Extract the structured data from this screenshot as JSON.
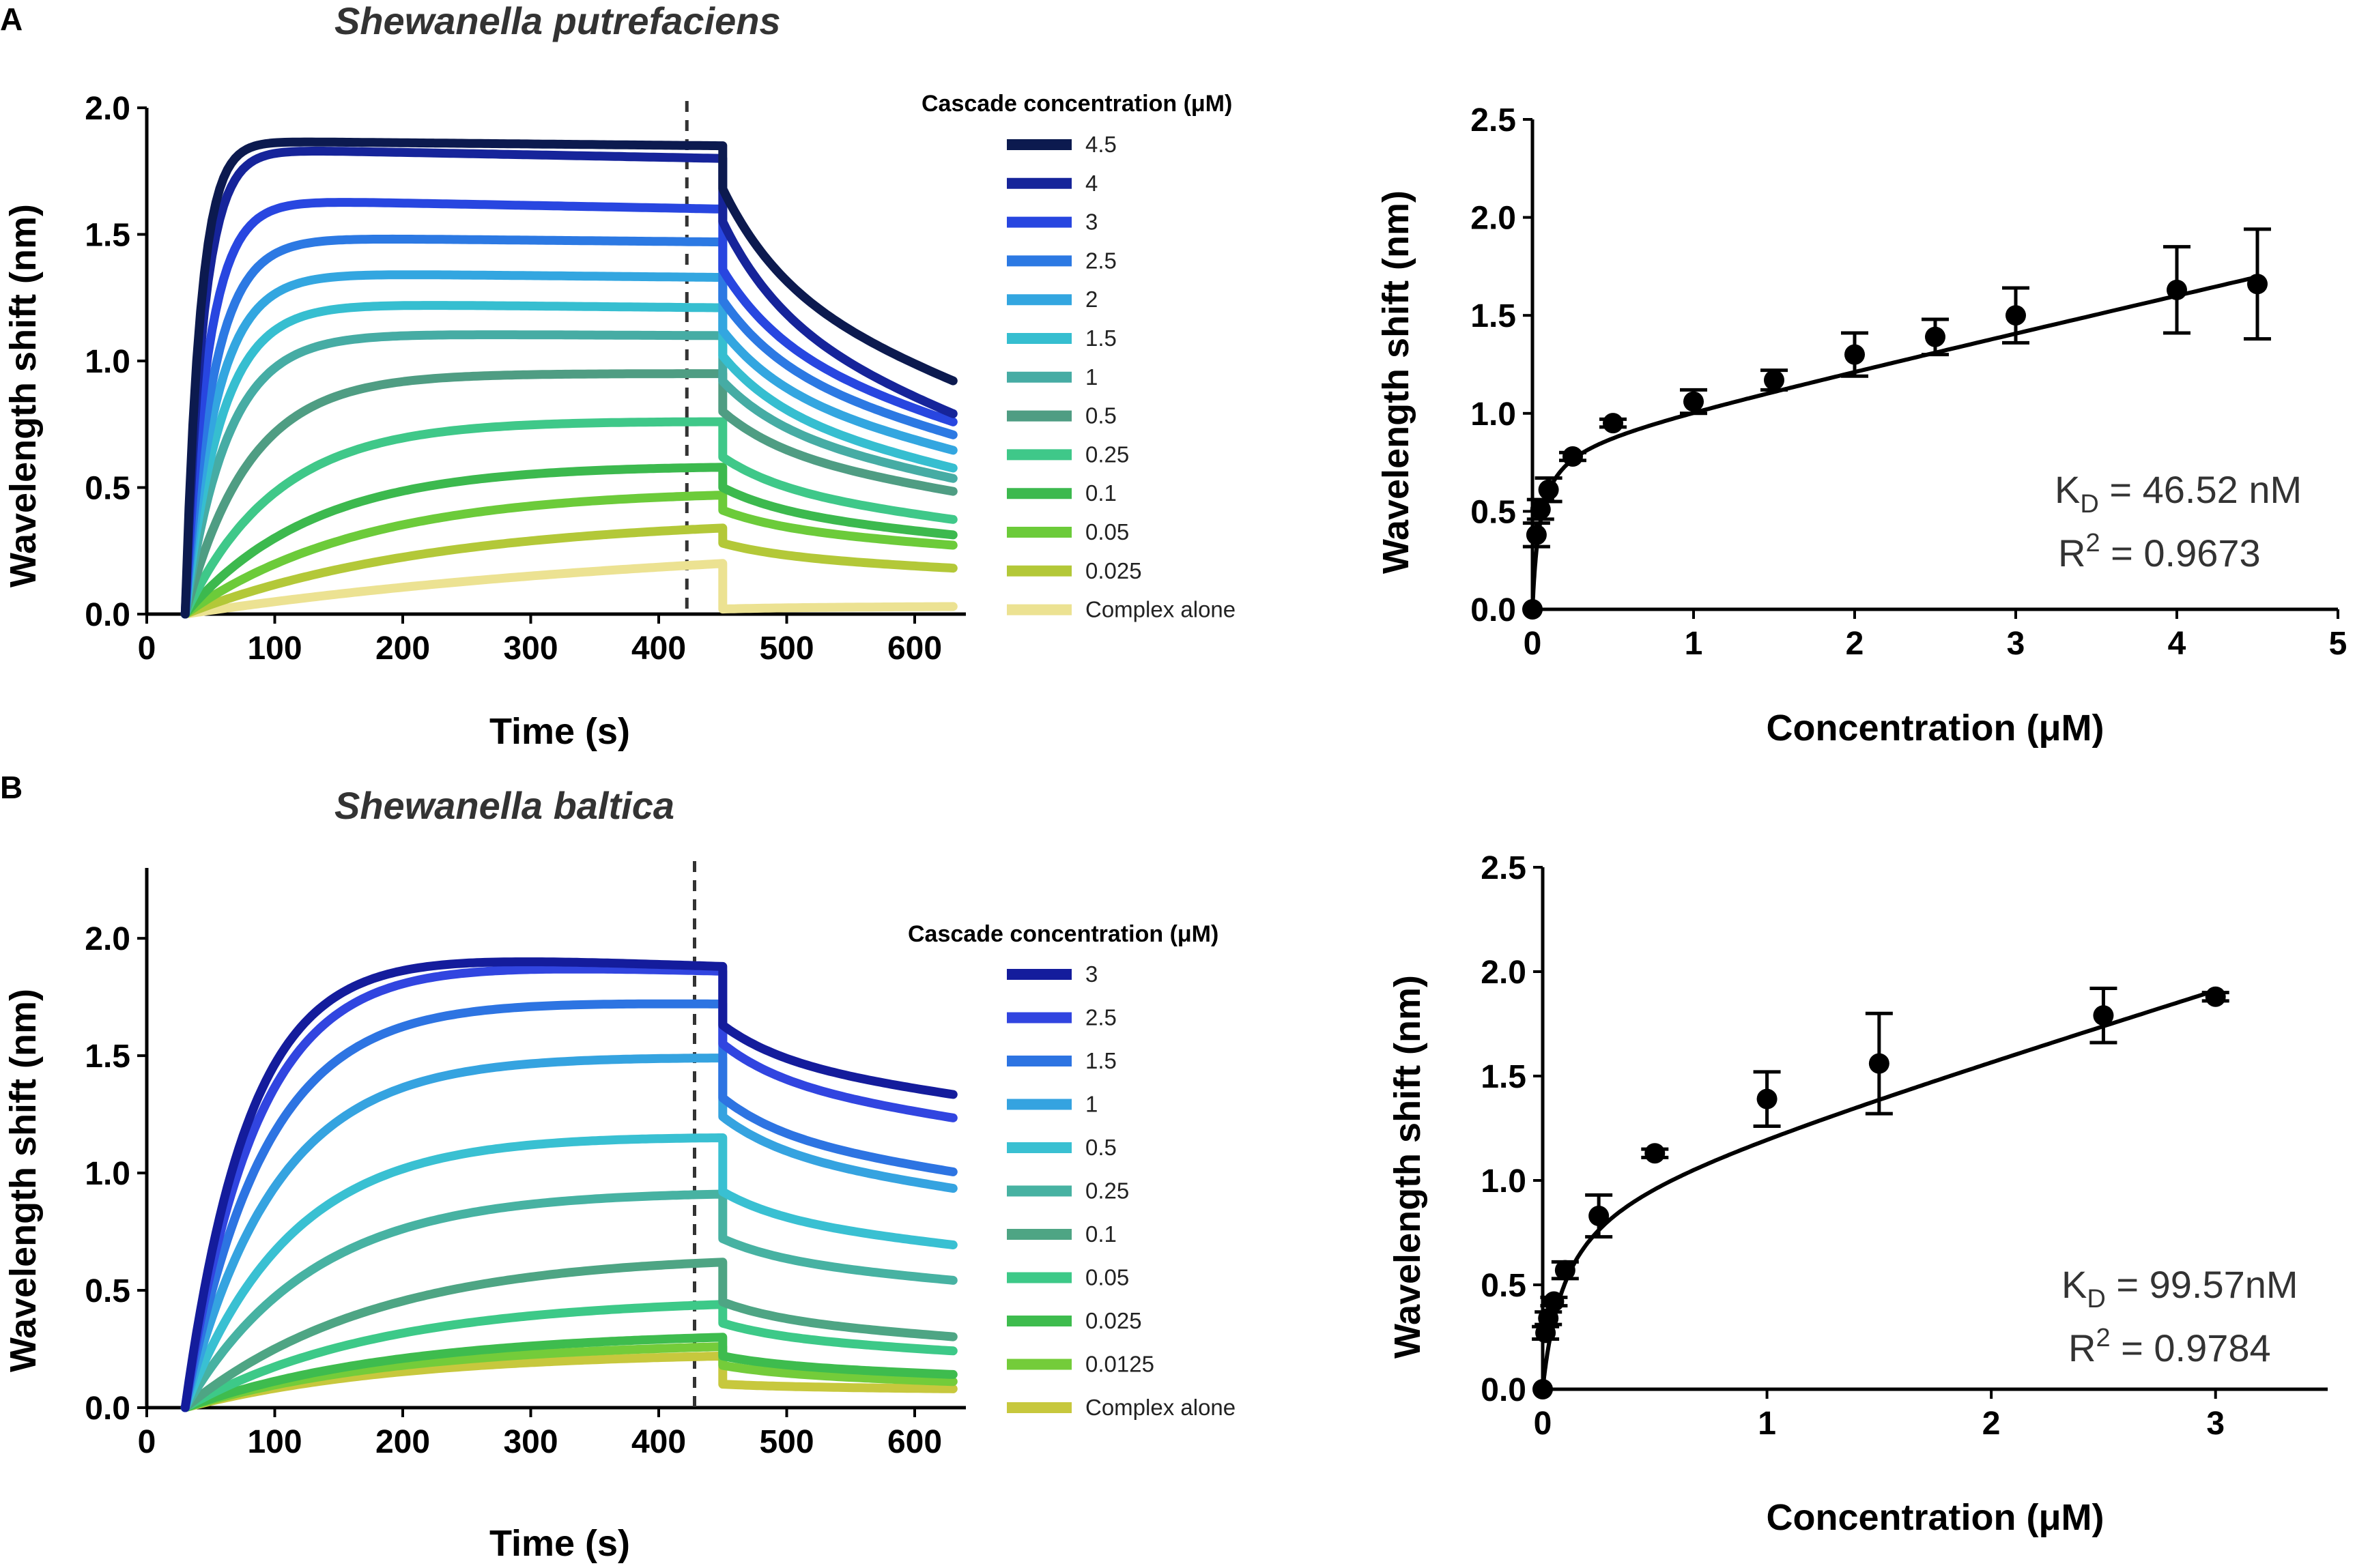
{
  "figure": {
    "panel_a_letter": "A",
    "panel_b_letter": "B"
  },
  "chart_data": [
    {
      "id": "A-sensogram",
      "type": "line",
      "title": "Shewanella putrefaciens",
      "xlabel": "Time (s)",
      "ylabel": "Wavelength shift (nm)",
      "xlim": [
        0,
        640
      ],
      "ylim": [
        0,
        2.0
      ],
      "xticks": [
        0,
        100,
        200,
        300,
        400,
        500,
        600
      ],
      "yticks": [
        0.0,
        0.5,
        1.0,
        1.5,
        2.0
      ],
      "ytick_labels": [
        "0.0",
        "0.5",
        "1.0",
        "1.5",
        "2.0"
      ],
      "dashed_line_x": 422,
      "legend_title": "Cascade concentration (μM)",
      "series": [
        {
          "name": "4.5",
          "color": "#0c1a4f",
          "plateau": 1.87,
          "k": 0.085,
          "end_assoc": 1.85,
          "jump": 1.68,
          "end_dissoc": 0.91
        },
        {
          "name": "4",
          "color": "#16249a",
          "plateau": 1.84,
          "k": 0.07,
          "end_assoc": 1.8,
          "jump": 1.55,
          "end_dissoc": 0.78
        },
        {
          "name": "3",
          "color": "#2846e0",
          "plateau": 1.64,
          "k": 0.055,
          "end_assoc": 1.6,
          "jump": 1.36,
          "end_dissoc": 0.75
        },
        {
          "name": "2.5",
          "color": "#2c79e3",
          "plateau": 1.49,
          "k": 0.045,
          "end_assoc": 1.47,
          "jump": 1.24,
          "end_dissoc": 0.7
        },
        {
          "name": "2",
          "color": "#33a6e0",
          "plateau": 1.35,
          "k": 0.04,
          "end_assoc": 1.33,
          "jump": 1.12,
          "end_dissoc": 0.64
        },
        {
          "name": "1.5",
          "color": "#36bed0",
          "plateau": 1.23,
          "k": 0.035,
          "end_assoc": 1.21,
          "jump": 1.02,
          "end_dissoc": 0.57
        },
        {
          "name": "1",
          "color": "#46aca4",
          "plateau": 1.11,
          "k": 0.03,
          "end_assoc": 1.1,
          "jump": 0.92,
          "end_dissoc": 0.53
        },
        {
          "name": "0.5",
          "color": "#4f9d83",
          "plateau": 0.95,
          "k": 0.02,
          "end_assoc": 0.95,
          "jump": 0.8,
          "end_dissoc": 0.48
        },
        {
          "name": "0.25",
          "color": "#3fc889",
          "plateau": 0.77,
          "k": 0.014,
          "end_assoc": 0.76,
          "jump": 0.62,
          "end_dissoc": 0.37
        },
        {
          "name": "0.1",
          "color": "#3cb94e",
          "plateau": 0.6,
          "k": 0.01,
          "end_assoc": 0.58,
          "jump": 0.5,
          "end_dissoc": 0.31
        },
        {
          "name": "0.05",
          "color": "#6ccb3a",
          "plateau": 0.52,
          "k": 0.007,
          "end_assoc": 0.47,
          "jump": 0.41,
          "end_dissoc": 0.27
        },
        {
          "name": "0.025",
          "color": "#b3c838",
          "plateau": 0.4,
          "k": 0.005,
          "end_assoc": 0.34,
          "jump": 0.28,
          "end_dissoc": 0.18
        },
        {
          "name": "Complex alone",
          "color": "#ece292",
          "plateau": 0.3,
          "k": 0.0025,
          "end_assoc": 0.2,
          "jump": 0.02,
          "end_dissoc": 0.03
        }
      ]
    },
    {
      "id": "A-binding",
      "type": "scatter",
      "xlabel": "Concentration (μM)",
      "ylabel": "Wavelength shift (nm)",
      "xlim": [
        0,
        5
      ],
      "ylim": [
        0,
        2.5
      ],
      "xticks": [
        0,
        1,
        2,
        3,
        4,
        5
      ],
      "yticks": [
        0.0,
        0.5,
        1.0,
        1.5,
        2.0,
        2.5
      ],
      "ytick_labels": [
        "0.0",
        "0.5",
        "1.0",
        "1.5",
        "2.0",
        "2.5"
      ],
      "points": [
        {
          "x": 0,
          "y": 0.0,
          "err": 0.0
        },
        {
          "x": 0.025,
          "y": 0.38,
          "err": 0.06
        },
        {
          "x": 0.05,
          "y": 0.51,
          "err": 0.05
        },
        {
          "x": 0.1,
          "y": 0.61,
          "err": 0.06
        },
        {
          "x": 0.25,
          "y": 0.78,
          "err": 0.02
        },
        {
          "x": 0.5,
          "y": 0.95,
          "err": 0.02
        },
        {
          "x": 1,
          "y": 1.06,
          "err": 0.06
        },
        {
          "x": 1.5,
          "y": 1.17,
          "err": 0.05
        },
        {
          "x": 2,
          "y": 1.3,
          "err": 0.11
        },
        {
          "x": 2.5,
          "y": 1.39,
          "err": 0.09
        },
        {
          "x": 3,
          "y": 1.5,
          "err": 0.14
        },
        {
          "x": 4,
          "y": 1.63,
          "err": 0.22
        },
        {
          "x": 4.5,
          "y": 1.66,
          "err": 0.28
        }
      ],
      "fit": {
        "bmax": 0.85,
        "kd": 0.04652,
        "ns": 0.19
      },
      "kd_prefix": "K",
      "kd_sub": "D",
      "kd_value": " = 46.52 nM",
      "r2_prefix": "R",
      "r2_sup": "2",
      "r2_value": " = 0.9673"
    },
    {
      "id": "B-sensogram",
      "type": "line",
      "title": "Shewanella baltica",
      "xlabel": "Time (s)",
      "ylabel": "Wavelength shift (nm)",
      "xlim": [
        0,
        640
      ],
      "ylim": [
        0,
        2.3
      ],
      "xticks": [
        0,
        100,
        200,
        300,
        400,
        500,
        600
      ],
      "yticks": [
        0.0,
        0.5,
        1.0,
        1.5,
        2.0
      ],
      "ytick_labels": [
        "0.0",
        "0.5",
        "1.0",
        "1.5",
        "2.0"
      ],
      "dashed_line_x": 428,
      "legend_title": "Cascade concentration (μM)",
      "series": [
        {
          "name": "3",
          "color": "#141c9c",
          "plateau": 1.96,
          "k": 0.02,
          "end_assoc": 1.88,
          "jump": 1.63,
          "end_dissoc": 1.33
        },
        {
          "name": "2.5",
          "color": "#3145e0",
          "plateau": 1.92,
          "k": 0.018,
          "end_assoc": 1.86,
          "jump": 1.55,
          "end_dissoc": 1.23
        },
        {
          "name": "1.5",
          "color": "#2d74e2",
          "plateau": 1.75,
          "k": 0.016,
          "end_assoc": 1.72,
          "jump": 1.32,
          "end_dissoc": 1.0
        },
        {
          "name": "1",
          "color": "#35a3e0",
          "plateau": 1.51,
          "k": 0.014,
          "end_assoc": 1.49,
          "jump": 1.24,
          "end_dissoc": 0.93
        },
        {
          "name": "0.5",
          "color": "#39c0d2",
          "plateau": 1.18,
          "k": 0.012,
          "end_assoc": 1.15,
          "jump": 0.92,
          "end_dissoc": 0.69
        },
        {
          "name": "0.25",
          "color": "#47b2a2",
          "plateau": 0.94,
          "k": 0.01,
          "end_assoc": 0.91,
          "jump": 0.72,
          "end_dissoc": 0.54
        },
        {
          "name": "0.1",
          "color": "#4ea584",
          "plateau": 0.7,
          "k": 0.0065,
          "end_assoc": 0.62,
          "jump": 0.45,
          "end_dissoc": 0.3
        },
        {
          "name": "0.05",
          "color": "#3dc988",
          "plateau": 0.48,
          "k": 0.0065,
          "end_assoc": 0.44,
          "jump": 0.36,
          "end_dissoc": 0.24
        },
        {
          "name": "0.025",
          "color": "#3ebc4e",
          "plateau": 0.33,
          "k": 0.006,
          "end_assoc": 0.3,
          "jump": 0.22,
          "end_dissoc": 0.14
        },
        {
          "name": "0.0125",
          "color": "#74cc3a",
          "plateau": 0.28,
          "k": 0.006,
          "end_assoc": 0.26,
          "jump": 0.18,
          "end_dissoc": 0.11
        },
        {
          "name": "Complex alone",
          "color": "#c7c83d",
          "plateau": 0.24,
          "k": 0.006,
          "end_assoc": 0.22,
          "jump": 0.1,
          "end_dissoc": 0.08
        }
      ]
    },
    {
      "id": "B-binding",
      "type": "scatter",
      "xlabel": "Concentration (μM)",
      "ylabel": "Wavelength shift (nm)",
      "xlim": [
        0,
        3.5
      ],
      "ylim": [
        0,
        2.5
      ],
      "xticks": [
        0,
        1,
        2,
        3
      ],
      "yticks": [
        0.0,
        0.5,
        1.0,
        1.5,
        2.0,
        2.5
      ],
      "ytick_labels": [
        "0.0",
        "0.5",
        "1.0",
        "1.5",
        "2.0",
        "2.5"
      ],
      "points": [
        {
          "x": 0,
          "y": 0.0,
          "err": 0.0
        },
        {
          "x": 0.0125,
          "y": 0.27,
          "err": 0.03
        },
        {
          "x": 0.025,
          "y": 0.34,
          "err": 0.03
        },
        {
          "x": 0.05,
          "y": 0.42,
          "err": 0.02
        },
        {
          "x": 0.1,
          "y": 0.57,
          "err": 0.04
        },
        {
          "x": 0.25,
          "y": 0.83,
          "err": 0.1
        },
        {
          "x": 0.5,
          "y": 1.13,
          "err": 0.02
        },
        {
          "x": 1,
          "y": 1.39,
          "err": 0.13
        },
        {
          "x": 1.5,
          "y": 1.56,
          "err": 0.24
        },
        {
          "x": 2.5,
          "y": 1.79,
          "err": 0.13
        },
        {
          "x": 3,
          "y": 1.88,
          "err": 0.02
        }
      ],
      "fit": {
        "bmax": 0.95,
        "kd": 0.09957,
        "ns": 0.33
      },
      "kd_prefix": "K",
      "kd_sub": "D",
      "kd_value": " = 99.57nM",
      "r2_prefix": "R",
      "r2_sup": "2",
      "r2_value": " = 0.9784"
    }
  ]
}
